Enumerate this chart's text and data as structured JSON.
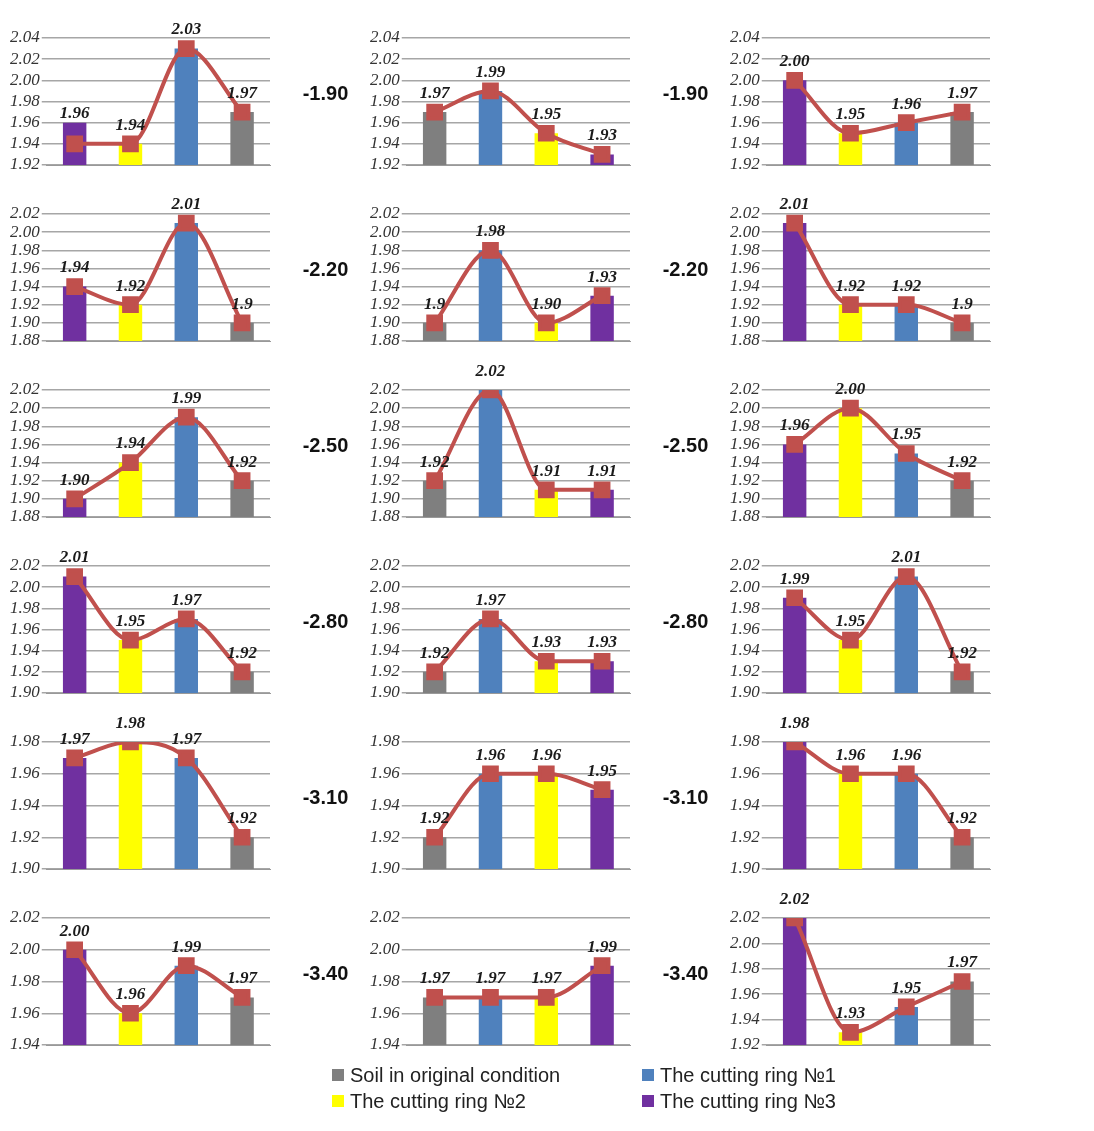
{
  "chart_data": [
    {
      "type": "bar",
      "categories": [
        null,
        null,
        null,
        null
      ],
      "ylim": [
        1.92,
        2.04
      ],
      "yticks": [
        {
          "value": 1.92,
          "label": "1.92"
        },
        {
          "value": 1.94,
          "label": "1.94"
        },
        {
          "value": 1.96,
          "label": "1.96"
        },
        {
          "value": 1.98,
          "label": "1.98"
        },
        {
          "value": 2,
          "label": "2.00"
        },
        {
          "value": 2.02,
          "label": "2.02"
        },
        {
          "value": 2.04,
          "label": "2.04"
        }
      ],
      "grid": "y",
      "tick_labels": "y",
      "marker": "square",
      "legend": "bottom",
      "annotations": [
        "-1.90"
      ],
      "series": [
        {
          "name": "Soil in original condition",
          "color": "#7f7f7f",
          "values": [
            null,
            null,
            null,
            1.97
          ],
          "value_labels": [
            null,
            null,
            null,
            "1.97"
          ]
        },
        {
          "name": "The cutting ring №1",
          "color": "#4f81bd",
          "values": [
            null,
            null,
            2.03,
            null
          ],
          "value_labels": [
            null,
            null,
            "2.03",
            null
          ]
        },
        {
          "name": "The cutting ring №2",
          "color": "#ffff00",
          "values": [
            null,
            1.94,
            null,
            null
          ],
          "value_labels": [
            null,
            "1.94",
            null,
            null
          ]
        },
        {
          "name": "The cutting ring №3",
          "color": "#7030a0",
          "values": [
            1.96,
            null,
            null,
            null
          ],
          "value_labels": [
            "1.96",
            null,
            null,
            null
          ]
        },
        {
          "type": "line",
          "color": "#c0504d",
          "values": [
            1.94,
            1.94,
            2.03,
            1.97
          ]
        }
      ]
    },
    {
      "type": "bar",
      "categories": [
        null,
        null,
        null,
        null
      ],
      "ylim": [
        1.92,
        2.04
      ],
      "yticks": [
        {
          "value": 1.92,
          "label": "1.92"
        },
        {
          "value": 1.94,
          "label": "1.94"
        },
        {
          "value": 1.96,
          "label": "1.96"
        },
        {
          "value": 1.98,
          "label": "1.98"
        },
        {
          "value": 2,
          "label": "2.00"
        },
        {
          "value": 2.02,
          "label": "2.02"
        },
        {
          "value": 2.04,
          "label": "2.04"
        }
      ],
      "grid": "y",
      "tick_labels": "y",
      "marker": "square",
      "annotations": [
        "-1.90"
      ],
      "series": [
        {
          "color": "#7f7f7f",
          "values": [
            1.97,
            null,
            null,
            null
          ],
          "value_labels": [
            "1.97",
            null,
            null,
            null
          ]
        },
        {
          "color": "#4f81bd",
          "values": [
            null,
            1.99,
            null,
            null
          ],
          "value_labels": [
            null,
            "1.99",
            null,
            null
          ]
        },
        {
          "color": "#ffff00",
          "values": [
            null,
            null,
            1.95,
            null
          ],
          "value_labels": [
            null,
            null,
            "1.95",
            null
          ]
        },
        {
          "color": "#7030a0",
          "values": [
            null,
            null,
            null,
            1.93
          ],
          "value_labels": [
            null,
            null,
            null,
            "1.93"
          ]
        },
        {
          "type": "line",
          "color": "#c0504d",
          "values": [
            1.97,
            1.99,
            1.95,
            1.93
          ]
        }
      ]
    },
    {
      "type": "bar",
      "categories": [
        null,
        null,
        null,
        null
      ],
      "ylim": [
        1.92,
        2.04
      ],
      "yticks": [
        {
          "value": 1.92,
          "label": "1.92"
        },
        {
          "value": 1.94,
          "label": "1.94"
        },
        {
          "value": 1.96,
          "label": "1.96"
        },
        {
          "value": 1.98,
          "label": "1.98"
        },
        {
          "value": 2,
          "label": "2.00"
        },
        {
          "value": 2.02,
          "label": "2.02"
        },
        {
          "value": 2.04,
          "label": "2.04"
        }
      ],
      "grid": "y",
      "tick_labels": "y",
      "marker": "square",
      "series": [
        {
          "color": "#7f7f7f",
          "values": [
            null,
            null,
            null,
            1.97
          ],
          "value_labels": [
            null,
            null,
            null,
            "1.97"
          ]
        },
        {
          "color": "#4f81bd",
          "values": [
            null,
            null,
            1.96,
            null
          ],
          "value_labels": [
            null,
            null,
            "1.96",
            null
          ]
        },
        {
          "color": "#ffff00",
          "values": [
            null,
            1.95,
            null,
            null
          ],
          "value_labels": [
            null,
            "1.95",
            null,
            null
          ]
        },
        {
          "color": "#7030a0",
          "values": [
            2,
            null,
            null,
            null
          ],
          "value_labels": [
            "2.00",
            null,
            null,
            null
          ]
        },
        {
          "type": "line",
          "color": "#c0504d",
          "values": [
            2,
            1.95,
            1.96,
            1.97
          ]
        }
      ]
    },
    {
      "type": "bar",
      "categories": [
        null,
        null,
        null,
        null
      ],
      "ylim": [
        1.88,
        2.02
      ],
      "yticks": [
        {
          "value": 1.88,
          "label": "1.88"
        },
        {
          "value": 1.9,
          "label": "1.90"
        },
        {
          "value": 1.92,
          "label": "1.92"
        },
        {
          "value": 1.94,
          "label": "1.94"
        },
        {
          "value": 1.96,
          "label": "1.96"
        },
        {
          "value": 1.98,
          "label": "1.98"
        },
        {
          "value": 2,
          "label": "2.00"
        },
        {
          "value": 2.02,
          "label": "2.02"
        }
      ],
      "grid": "y",
      "tick_labels": "y",
      "marker": "square",
      "annotations": [
        "-2.20"
      ],
      "series": [
        {
          "color": "#7f7f7f",
          "values": [
            null,
            null,
            null,
            1.9
          ],
          "value_labels": [
            null,
            null,
            null,
            "1.9"
          ]
        },
        {
          "color": "#4f81bd",
          "values": [
            null,
            null,
            2.01,
            null
          ],
          "value_labels": [
            null,
            null,
            "2.01",
            null
          ]
        },
        {
          "color": "#ffff00",
          "values": [
            null,
            1.92,
            null,
            null
          ],
          "value_labels": [
            null,
            "1.92",
            null,
            null
          ]
        },
        {
          "color": "#7030a0",
          "values": [
            1.94,
            null,
            null,
            null
          ],
          "value_labels": [
            "1.94",
            null,
            null,
            null
          ]
        },
        {
          "type": "line",
          "color": "#c0504d",
          "values": [
            1.94,
            1.92,
            2.01,
            1.9
          ]
        }
      ]
    },
    {
      "type": "bar",
      "categories": [
        null,
        null,
        null,
        null
      ],
      "ylim": [
        1.88,
        2.02
      ],
      "yticks": [
        {
          "value": 1.88,
          "label": "1.88"
        },
        {
          "value": 1.9,
          "label": "1.90"
        },
        {
          "value": 1.92,
          "label": "1.92"
        },
        {
          "value": 1.94,
          "label": "1.94"
        },
        {
          "value": 1.96,
          "label": "1.96"
        },
        {
          "value": 1.98,
          "label": "1.98"
        },
        {
          "value": 2,
          "label": "2.00"
        },
        {
          "value": 2.02,
          "label": "2.02"
        }
      ],
      "grid": "y",
      "tick_labels": "y",
      "marker": "square",
      "annotations": [
        "-2.20"
      ],
      "series": [
        {
          "color": "#7f7f7f",
          "values": [
            1.9,
            null,
            null,
            null
          ],
          "value_labels": [
            "1.9",
            null,
            null,
            null
          ]
        },
        {
          "color": "#4f81bd",
          "values": [
            null,
            1.98,
            null,
            null
          ],
          "value_labels": [
            null,
            "1.98",
            null,
            null
          ]
        },
        {
          "color": "#ffff00",
          "values": [
            null,
            null,
            1.9,
            null
          ],
          "value_labels": [
            null,
            null,
            "1.90",
            null
          ]
        },
        {
          "color": "#7030a0",
          "values": [
            null,
            null,
            null,
            1.93
          ],
          "value_labels": [
            null,
            null,
            null,
            "1.93"
          ]
        },
        {
          "type": "line",
          "color": "#c0504d",
          "values": [
            1.9,
            1.98,
            1.9,
            1.93
          ]
        }
      ]
    },
    {
      "type": "bar",
      "categories": [
        null,
        null,
        null,
        null
      ],
      "ylim": [
        1.88,
        2.02
      ],
      "yticks": [
        {
          "value": 1.88,
          "label": "1.88"
        },
        {
          "value": 1.9,
          "label": "1.90"
        },
        {
          "value": 1.92,
          "label": "1.92"
        },
        {
          "value": 1.94,
          "label": "1.94"
        },
        {
          "value": 1.96,
          "label": "1.96"
        },
        {
          "value": 1.98,
          "label": "1.98"
        },
        {
          "value": 2,
          "label": "2.00"
        },
        {
          "value": 2.02,
          "label": "2.02"
        }
      ],
      "grid": "y",
      "tick_labels": "y",
      "marker": "square",
      "series": [
        {
          "color": "#7f7f7f",
          "values": [
            null,
            null,
            null,
            1.9
          ],
          "value_labels": [
            null,
            null,
            null,
            "1.9"
          ]
        },
        {
          "color": "#4f81bd",
          "values": [
            null,
            null,
            1.92,
            null
          ],
          "value_labels": [
            null,
            null,
            "1.92",
            null
          ]
        },
        {
          "color": "#ffff00",
          "values": [
            null,
            1.92,
            null,
            null
          ],
          "value_labels": [
            null,
            "1.92",
            null,
            null
          ]
        },
        {
          "color": "#7030a0",
          "values": [
            2.01,
            null,
            null,
            null
          ],
          "value_labels": [
            "2.01",
            null,
            null,
            null
          ]
        },
        {
          "type": "line",
          "color": "#c0504d",
          "values": [
            2.01,
            1.92,
            1.92,
            1.9
          ]
        }
      ]
    },
    {
      "type": "bar",
      "categories": [
        null,
        null,
        null,
        null
      ],
      "ylim": [
        1.88,
        2.02
      ],
      "yticks": [
        {
          "value": 1.88,
          "label": "1.88"
        },
        {
          "value": 1.9,
          "label": "1.90"
        },
        {
          "value": 1.92,
          "label": "1.92"
        },
        {
          "value": 1.94,
          "label": "1.94"
        },
        {
          "value": 1.96,
          "label": "1.96"
        },
        {
          "value": 1.98,
          "label": "1.98"
        },
        {
          "value": 2,
          "label": "2.00"
        },
        {
          "value": 2.02,
          "label": "2.02"
        }
      ],
      "grid": "y",
      "tick_labels": "y",
      "marker": "square",
      "annotations": [
        "-2.50"
      ],
      "series": [
        {
          "color": "#7f7f7f",
          "values": [
            null,
            null,
            null,
            1.92
          ],
          "value_labels": [
            null,
            null,
            null,
            "1.92"
          ]
        },
        {
          "color": "#4f81bd",
          "values": [
            null,
            null,
            1.99,
            null
          ],
          "value_labels": [
            null,
            null,
            "1.99",
            null
          ]
        },
        {
          "color": "#ffff00",
          "values": [
            null,
            1.94,
            null,
            null
          ],
          "value_labels": [
            null,
            "1.94",
            null,
            null
          ]
        },
        {
          "color": "#7030a0",
          "values": [
            1.9,
            null,
            null,
            null
          ],
          "value_labels": [
            "1.90",
            null,
            null,
            null
          ]
        },
        {
          "type": "line",
          "color": "#c0504d",
          "values": [
            1.9,
            1.94,
            1.99,
            1.92
          ]
        }
      ]
    },
    {
      "type": "bar",
      "categories": [
        null,
        null,
        null,
        null
      ],
      "ylim": [
        1.88,
        2.02
      ],
      "yticks": [
        {
          "value": 1.88,
          "label": "1.88"
        },
        {
          "value": 1.9,
          "label": "1.90"
        },
        {
          "value": 1.92,
          "label": "1.92"
        },
        {
          "value": 1.94,
          "label": "1.94"
        },
        {
          "value": 1.96,
          "label": "1.96"
        },
        {
          "value": 1.98,
          "label": "1.98"
        },
        {
          "value": 2,
          "label": "2.00"
        },
        {
          "value": 2.02,
          "label": "2.02"
        }
      ],
      "grid": "y",
      "tick_labels": "y",
      "marker": "square",
      "annotations": [
        "-2.50"
      ],
      "series": [
        {
          "color": "#7f7f7f",
          "values": [
            1.92,
            null,
            null,
            null
          ],
          "value_labels": [
            "1.92",
            null,
            null,
            null
          ]
        },
        {
          "color": "#4f81bd",
          "values": [
            null,
            2.02,
            null,
            null
          ],
          "value_labels": [
            null,
            "2.02",
            null,
            null
          ]
        },
        {
          "color": "#ffff00",
          "values": [
            null,
            null,
            1.91,
            null
          ],
          "value_labels": [
            null,
            null,
            "1.91",
            null
          ]
        },
        {
          "color": "#7030a0",
          "values": [
            null,
            null,
            null,
            1.91
          ],
          "value_labels": [
            null,
            null,
            null,
            "1.91"
          ]
        },
        {
          "type": "line",
          "color": "#c0504d",
          "values": [
            1.92,
            2.02,
            1.91,
            1.91
          ]
        }
      ]
    },
    {
      "type": "bar",
      "categories": [
        null,
        null,
        null,
        null
      ],
      "ylim": [
        1.88,
        2.02
      ],
      "yticks": [
        {
          "value": 1.88,
          "label": "1.88"
        },
        {
          "value": 1.9,
          "label": "1.90"
        },
        {
          "value": 1.92,
          "label": "1.92"
        },
        {
          "value": 1.94,
          "label": "1.94"
        },
        {
          "value": 1.96,
          "label": "1.96"
        },
        {
          "value": 1.98,
          "label": "1.98"
        },
        {
          "value": 2,
          "label": "2.00"
        },
        {
          "value": 2.02,
          "label": "2.02"
        }
      ],
      "grid": "y",
      "tick_labels": "y",
      "marker": "square",
      "series": [
        {
          "color": "#7f7f7f",
          "values": [
            null,
            null,
            null,
            1.92
          ],
          "value_labels": [
            null,
            null,
            null,
            "1.92"
          ]
        },
        {
          "color": "#4f81bd",
          "values": [
            null,
            null,
            1.95,
            null
          ],
          "value_labels": [
            null,
            null,
            "1.95",
            null
          ]
        },
        {
          "color": "#ffff00",
          "values": [
            null,
            2,
            null,
            null
          ],
          "value_labels": [
            null,
            "2.00",
            null,
            null
          ]
        },
        {
          "color": "#7030a0",
          "values": [
            1.96,
            null,
            null,
            null
          ],
          "value_labels": [
            "1.96",
            null,
            null,
            null
          ]
        },
        {
          "type": "line",
          "color": "#c0504d",
          "values": [
            1.96,
            2,
            1.95,
            1.92
          ]
        }
      ]
    },
    {
      "type": "bar",
      "categories": [
        null,
        null,
        null,
        null
      ],
      "ylim": [
        1.9,
        2.02
      ],
      "yticks": [
        {
          "value": 1.9,
          "label": "1.90"
        },
        {
          "value": 1.92,
          "label": "1.92"
        },
        {
          "value": 1.94,
          "label": "1.94"
        },
        {
          "value": 1.96,
          "label": "1.96"
        },
        {
          "value": 1.98,
          "label": "1.98"
        },
        {
          "value": 2,
          "label": "2.00"
        },
        {
          "value": 2.02,
          "label": "2.02"
        }
      ],
      "grid": "y",
      "tick_labels": "y",
      "marker": "square",
      "annotations": [
        "-2.80"
      ],
      "series": [
        {
          "color": "#7f7f7f",
          "values": [
            null,
            null,
            null,
            1.92
          ],
          "value_labels": [
            null,
            null,
            null,
            "1.92"
          ]
        },
        {
          "color": "#4f81bd",
          "values": [
            null,
            null,
            1.97,
            null
          ],
          "value_labels": [
            null,
            null,
            "1.97",
            null
          ]
        },
        {
          "color": "#ffff00",
          "values": [
            null,
            1.95,
            null,
            null
          ],
          "value_labels": [
            null,
            "1.95",
            null,
            null
          ]
        },
        {
          "color": "#7030a0",
          "values": [
            2.01,
            null,
            null,
            null
          ],
          "value_labels": [
            "2.01",
            null,
            null,
            null
          ]
        },
        {
          "type": "line",
          "color": "#c0504d",
          "values": [
            2.01,
            1.95,
            1.97,
            1.92
          ]
        }
      ]
    },
    {
      "type": "bar",
      "categories": [
        null,
        null,
        null,
        null
      ],
      "ylim": [
        1.9,
        2.02
      ],
      "yticks": [
        {
          "value": 1.9,
          "label": "1.90"
        },
        {
          "value": 1.92,
          "label": "1.92"
        },
        {
          "value": 1.94,
          "label": "1.94"
        },
        {
          "value": 1.96,
          "label": "1.96"
        },
        {
          "value": 1.98,
          "label": "1.98"
        },
        {
          "value": 2,
          "label": "2.00"
        },
        {
          "value": 2.02,
          "label": "2.02"
        }
      ],
      "grid": "y",
      "tick_labels": "y",
      "marker": "square",
      "annotations": [
        "-2.80"
      ],
      "series": [
        {
          "color": "#7f7f7f",
          "values": [
            1.92,
            null,
            null,
            null
          ],
          "value_labels": [
            "1.92",
            null,
            null,
            null
          ]
        },
        {
          "color": "#4f81bd",
          "values": [
            null,
            1.97,
            null,
            null
          ],
          "value_labels": [
            null,
            "1.97",
            null,
            null
          ]
        },
        {
          "color": "#ffff00",
          "values": [
            null,
            null,
            1.93,
            null
          ],
          "value_labels": [
            null,
            null,
            "1.93",
            null
          ]
        },
        {
          "color": "#7030a0",
          "values": [
            null,
            null,
            null,
            1.93
          ],
          "value_labels": [
            null,
            null,
            null,
            "1.93"
          ]
        },
        {
          "type": "line",
          "color": "#c0504d",
          "values": [
            1.92,
            1.97,
            1.93,
            1.93
          ]
        }
      ]
    },
    {
      "type": "bar",
      "categories": [
        null,
        null,
        null,
        null
      ],
      "ylim": [
        1.9,
        2.02
      ],
      "yticks": [
        {
          "value": 1.9,
          "label": "1.90"
        },
        {
          "value": 1.92,
          "label": "1.92"
        },
        {
          "value": 1.94,
          "label": "1.94"
        },
        {
          "value": 1.96,
          "label": "1.96"
        },
        {
          "value": 1.98,
          "label": "1.98"
        },
        {
          "value": 2,
          "label": "2.00"
        },
        {
          "value": 2.02,
          "label": "2.02"
        }
      ],
      "grid": "y",
      "tick_labels": "y",
      "marker": "square",
      "series": [
        {
          "color": "#7f7f7f",
          "values": [
            null,
            null,
            null,
            1.92
          ],
          "value_labels": [
            null,
            null,
            null,
            "1.92"
          ]
        },
        {
          "color": "#4f81bd",
          "values": [
            null,
            null,
            2.01,
            null
          ],
          "value_labels": [
            null,
            null,
            "2.01",
            null
          ]
        },
        {
          "color": "#ffff00",
          "values": [
            null,
            1.95,
            null,
            null
          ],
          "value_labels": [
            null,
            "1.95",
            null,
            null
          ]
        },
        {
          "color": "#7030a0",
          "values": [
            1.99,
            null,
            null,
            null
          ],
          "value_labels": [
            "1.99",
            null,
            null,
            null
          ]
        },
        {
          "type": "line",
          "color": "#c0504d",
          "values": [
            1.99,
            1.95,
            2.01,
            1.92
          ]
        }
      ]
    },
    {
      "type": "bar",
      "categories": [
        null,
        null,
        null,
        null
      ],
      "ylim": [
        1.9,
        1.98
      ],
      "yticks": [
        {
          "value": 1.9,
          "label": "1.90"
        },
        {
          "value": 1.92,
          "label": "1.92"
        },
        {
          "value": 1.94,
          "label": "1.94"
        },
        {
          "value": 1.96,
          "label": "1.96"
        },
        {
          "value": 1.98,
          "label": "1.98"
        }
      ],
      "grid": "y",
      "tick_labels": "y",
      "marker": "square",
      "annotations": [
        "-3.10"
      ],
      "series": [
        {
          "color": "#7f7f7f",
          "values": [
            null,
            null,
            null,
            1.92
          ],
          "value_labels": [
            null,
            null,
            null,
            "1.92"
          ]
        },
        {
          "color": "#4f81bd",
          "values": [
            null,
            null,
            1.97,
            null
          ],
          "value_labels": [
            null,
            null,
            "1.97",
            null
          ]
        },
        {
          "color": "#ffff00",
          "values": [
            null,
            1.98,
            null,
            null
          ],
          "value_labels": [
            null,
            "1.98",
            null,
            null
          ]
        },
        {
          "color": "#7030a0",
          "values": [
            1.97,
            null,
            null,
            null
          ],
          "value_labels": [
            "1.97",
            null,
            null,
            null
          ]
        },
        {
          "type": "line",
          "color": "#c0504d",
          "values": [
            1.97,
            1.98,
            1.97,
            1.92
          ]
        }
      ]
    },
    {
      "type": "bar",
      "categories": [
        null,
        null,
        null,
        null
      ],
      "ylim": [
        1.9,
        1.98
      ],
      "yticks": [
        {
          "value": 1.9,
          "label": "1.90"
        },
        {
          "value": 1.92,
          "label": "1.92"
        },
        {
          "value": 1.94,
          "label": "1.94"
        },
        {
          "value": 1.96,
          "label": "1.96"
        },
        {
          "value": 1.98,
          "label": "1.98"
        }
      ],
      "grid": "y",
      "tick_labels": "y",
      "marker": "square",
      "annotations": [
        "-3.10"
      ],
      "series": [
        {
          "color": "#7f7f7f",
          "values": [
            1.92,
            null,
            null,
            null
          ],
          "value_labels": [
            "1.92",
            null,
            null,
            null
          ]
        },
        {
          "color": "#4f81bd",
          "values": [
            null,
            1.96,
            null,
            null
          ],
          "value_labels": [
            null,
            "1.96",
            null,
            null
          ]
        },
        {
          "color": "#ffff00",
          "values": [
            null,
            null,
            1.96,
            null
          ],
          "value_labels": [
            null,
            null,
            "1.96",
            null
          ]
        },
        {
          "color": "#7030a0",
          "values": [
            null,
            null,
            null,
            1.95
          ],
          "value_labels": [
            null,
            null,
            null,
            "1.95"
          ]
        },
        {
          "type": "line",
          "color": "#c0504d",
          "values": [
            1.92,
            1.96,
            1.96,
            1.95
          ]
        }
      ]
    },
    {
      "type": "bar",
      "categories": [
        null,
        null,
        null,
        null
      ],
      "ylim": [
        1.9,
        1.98
      ],
      "yticks": [
        {
          "value": 1.9,
          "label": "1.90"
        },
        {
          "value": 1.92,
          "label": "1.92"
        },
        {
          "value": 1.94,
          "label": "1.94"
        },
        {
          "value": 1.96,
          "label": "1.96"
        },
        {
          "value": 1.98,
          "label": "1.98"
        }
      ],
      "grid": "y",
      "tick_labels": "y",
      "marker": "square",
      "series": [
        {
          "color": "#7f7f7f",
          "values": [
            null,
            null,
            null,
            1.92
          ],
          "value_labels": [
            null,
            null,
            null,
            "1.92"
          ]
        },
        {
          "color": "#4f81bd",
          "values": [
            null,
            null,
            1.96,
            null
          ],
          "value_labels": [
            null,
            null,
            "1.96",
            null
          ]
        },
        {
          "color": "#ffff00",
          "values": [
            null,
            1.96,
            null,
            null
          ],
          "value_labels": [
            null,
            "1.96",
            null,
            null
          ]
        },
        {
          "color": "#7030a0",
          "values": [
            1.98,
            null,
            null,
            null
          ],
          "value_labels": [
            "1.98",
            null,
            null,
            null
          ]
        },
        {
          "type": "line",
          "color": "#c0504d",
          "values": [
            1.98,
            1.96,
            1.96,
            1.92
          ]
        }
      ]
    },
    {
      "type": "bar",
      "categories": [
        null,
        null,
        null,
        null
      ],
      "ylim": [
        1.94,
        2.02
      ],
      "yticks": [
        {
          "value": 1.94,
          "label": "1.94"
        },
        {
          "value": 1.96,
          "label": "1.96"
        },
        {
          "value": 1.98,
          "label": "1.98"
        },
        {
          "value": 2,
          "label": "2.00"
        },
        {
          "value": 2.02,
          "label": "2.02"
        }
      ],
      "grid": "y",
      "tick_labels": "y",
      "marker": "square",
      "annotations": [
        "-3.40"
      ],
      "series": [
        {
          "color": "#7f7f7f",
          "values": [
            null,
            null,
            null,
            1.97
          ],
          "value_labels": [
            null,
            null,
            null,
            "1.97"
          ]
        },
        {
          "color": "#4f81bd",
          "values": [
            null,
            null,
            1.99,
            null
          ],
          "value_labels": [
            null,
            null,
            "1.99",
            null
          ]
        },
        {
          "color": "#ffff00",
          "values": [
            null,
            1.96,
            null,
            null
          ],
          "value_labels": [
            null,
            "1.96",
            null,
            null
          ]
        },
        {
          "color": "#7030a0",
          "values": [
            2,
            null,
            null,
            null
          ],
          "value_labels": [
            "2.00",
            null,
            null,
            null
          ]
        },
        {
          "type": "line",
          "color": "#c0504d",
          "values": [
            2,
            1.96,
            1.99,
            1.97
          ]
        }
      ]
    },
    {
      "type": "bar",
      "categories": [
        null,
        null,
        null,
        null
      ],
      "ylim": [
        1.94,
        2.02
      ],
      "yticks": [
        {
          "value": 1.94,
          "label": "1.94"
        },
        {
          "value": 1.96,
          "label": "1.96"
        },
        {
          "value": 1.98,
          "label": "1.98"
        },
        {
          "value": 2,
          "label": "2.00"
        },
        {
          "value": 2.02,
          "label": "2.02"
        }
      ],
      "grid": "y",
      "tick_labels": "y",
      "marker": "square",
      "annotations": [
        "-3.40"
      ],
      "series": [
        {
          "color": "#7f7f7f",
          "values": [
            1.97,
            null,
            null,
            null
          ],
          "value_labels": [
            "1.97",
            null,
            null,
            null
          ]
        },
        {
          "color": "#4f81bd",
          "values": [
            null,
            1.97,
            null,
            null
          ],
          "value_labels": [
            null,
            "1.97",
            null,
            null
          ]
        },
        {
          "color": "#ffff00",
          "values": [
            null,
            null,
            1.97,
            null
          ],
          "value_labels": [
            null,
            null,
            "1.97",
            null
          ]
        },
        {
          "color": "#7030a0",
          "values": [
            null,
            null,
            null,
            1.99
          ],
          "value_labels": [
            null,
            null,
            null,
            "1.99"
          ]
        },
        {
          "type": "line",
          "color": "#c0504d",
          "values": [
            1.97,
            1.97,
            1.97,
            1.99
          ]
        }
      ]
    },
    {
      "type": "bar",
      "categories": [
        null,
        null,
        null,
        null
      ],
      "ylim": [
        1.92,
        2.02
      ],
      "yticks": [
        {
          "value": 1.92,
          "label": "1.92"
        },
        {
          "value": 1.94,
          "label": "1.94"
        },
        {
          "value": 1.96,
          "label": "1.96"
        },
        {
          "value": 1.98,
          "label": "1.98"
        },
        {
          "value": 2,
          "label": "2.00"
        },
        {
          "value": 2.02,
          "label": "2.02"
        }
      ],
      "grid": "y",
      "tick_labels": "y",
      "marker": "square",
      "series": [
        {
          "color": "#7f7f7f",
          "values": [
            null,
            null,
            null,
            1.97
          ],
          "value_labels": [
            null,
            null,
            null,
            "1.97"
          ]
        },
        {
          "color": "#4f81bd",
          "values": [
            null,
            null,
            1.95,
            null
          ],
          "value_labels": [
            null,
            null,
            "1.95",
            null
          ]
        },
        {
          "color": "#ffff00",
          "values": [
            null,
            1.93,
            null,
            null
          ],
          "value_labels": [
            null,
            "1.93",
            null,
            null
          ]
        },
        {
          "color": "#7030a0",
          "values": [
            2.02,
            null,
            null,
            null
          ],
          "value_labels": [
            "2.02",
            null,
            null,
            null
          ]
        },
        {
          "type": "line",
          "color": "#c0504d",
          "values": [
            2.02,
            1.93,
            1.95,
            1.97
          ]
        }
      ]
    }
  ]
}
